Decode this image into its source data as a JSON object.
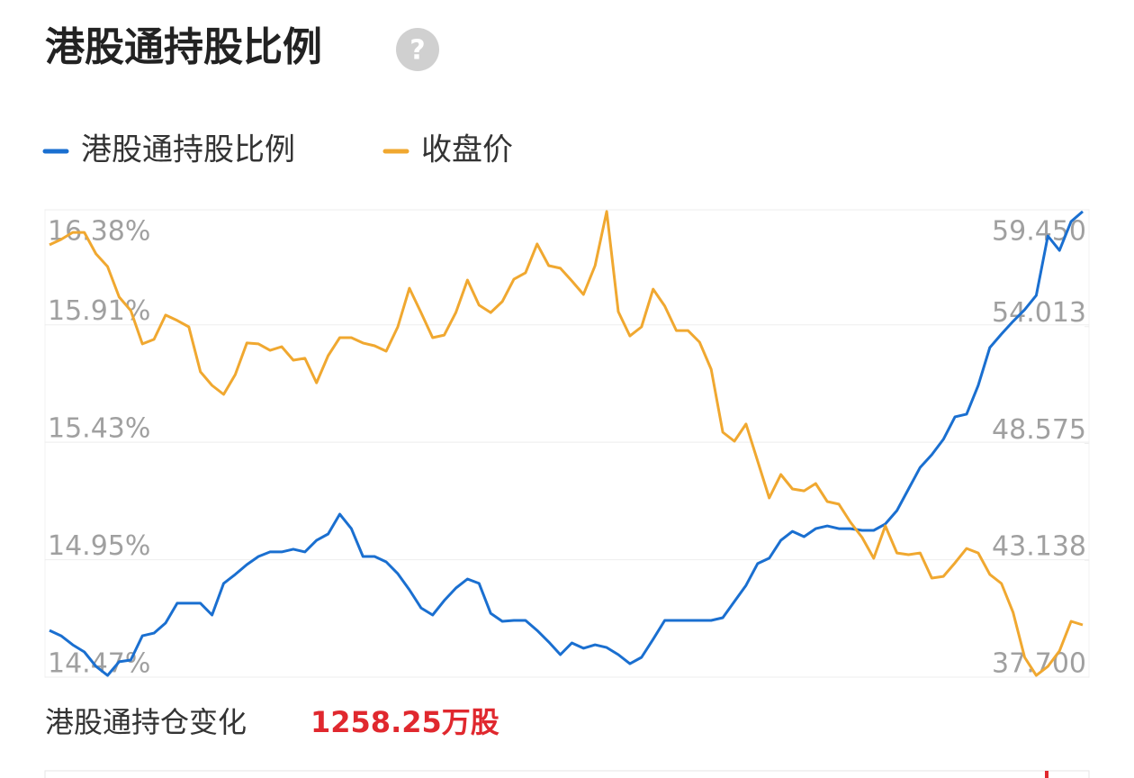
{
  "header": {
    "title": "港股通持股比例"
  },
  "chart_data": {
    "type": "line",
    "categories": [
      null,
      null,
      null,
      null,
      null,
      null,
      null,
      null,
      null,
      null,
      null,
      null,
      null,
      null,
      null,
      null,
      null,
      null,
      null,
      null,
      null,
      null,
      null,
      null,
      null,
      null,
      null,
      null,
      null,
      null,
      null,
      null,
      null,
      null,
      null,
      null,
      null,
      null,
      null,
      null,
      null,
      null,
      null,
      null,
      null,
      null,
      null,
      null,
      null,
      null,
      null,
      null,
      null,
      null,
      null,
      null,
      null,
      null,
      null,
      null,
      null,
      null,
      null,
      null,
      null,
      null,
      null,
      null,
      null,
      null,
      null,
      null,
      null,
      null,
      null,
      null,
      null,
      null,
      null,
      null,
      null,
      null,
      null,
      null,
      null,
      null,
      null,
      null,
      null,
      null
    ],
    "series": [
      {
        "name": "港股通持股比例",
        "color": "#1a6fd0",
        "values": [
          14.661,
          14.639,
          14.602,
          14.573,
          14.514,
          14.477,
          14.533,
          14.54,
          14.639,
          14.65,
          14.691,
          14.772,
          14.772,
          14.772,
          14.724,
          14.853,
          14.89,
          14.93,
          14.963,
          14.982,
          14.982,
          14.993,
          14.982,
          15.029,
          15.055,
          15.136,
          15.077,
          14.963,
          14.963,
          14.941,
          14.893,
          14.827,
          14.753,
          14.724,
          14.783,
          14.834,
          14.871,
          14.853,
          14.731,
          14.698,
          14.702,
          14.702,
          14.661,
          14.614,
          14.562,
          14.61,
          14.588,
          14.602,
          14.591,
          14.562,
          14.525,
          14.551,
          14.625,
          14.702,
          14.702,
          14.702,
          14.702,
          14.702,
          14.713,
          14.779,
          14.845,
          14.934,
          14.956,
          15.029,
          15.066,
          15.044,
          15.077,
          15.088,
          15.077,
          15.077,
          15.07,
          15.07,
          15.096,
          15.151,
          15.239,
          15.327,
          15.379,
          15.442,
          15.534,
          15.545,
          15.662,
          15.817,
          15.872,
          15.924,
          15.972,
          16.03,
          16.273,
          16.214,
          16.332,
          16.373
        ]
      },
      {
        "name": "收盘价",
        "color": "#f0a830",
        "axis": "y2",
        "values": [
          57.82,
          58.07,
          58.4,
          58.4,
          57.4,
          56.81,
          55.39,
          54.76,
          53.21,
          53.42,
          54.55,
          54.3,
          54.0,
          51.91,
          51.28,
          50.86,
          51.78,
          53.25,
          53.21,
          52.91,
          53.08,
          52.45,
          52.54,
          51.4,
          52.66,
          53.5,
          53.5,
          53.25,
          53.12,
          52.87,
          54.0,
          55.8,
          54.67,
          53.5,
          53.62,
          54.67,
          56.18,
          55.01,
          54.67,
          55.18,
          56.22,
          56.52,
          57.86,
          56.85,
          56.73,
          56.14,
          55.51,
          56.85,
          59.37,
          54.71,
          53.58,
          54.0,
          55.76,
          54.97,
          53.83,
          53.83,
          53.29,
          52.03,
          49.1,
          48.68,
          49.48,
          47.76,
          46.04,
          47.13,
          46.46,
          46.37,
          46.71,
          45.87,
          45.75,
          44.91,
          44.2,
          43.23,
          44.74,
          43.48,
          43.4,
          43.48,
          42.31,
          42.39,
          43.02,
          43.69,
          43.48,
          42.48,
          42.06,
          40.72,
          38.62,
          37.78,
          38.2,
          38.92,
          40.3,
          40.13
        ]
      }
    ],
    "ylim": [
      14.47,
      16.38
    ],
    "yticks": [
      {
        "value": 14.47,
        "label": "14.47%"
      },
      {
        "value": 14.95,
        "label": "14.95%"
      },
      {
        "value": 15.43,
        "label": "15.43%"
      },
      {
        "value": 15.91,
        "label": "15.91%"
      },
      {
        "value": 16.38,
        "label": "16.38%"
      }
    ],
    "y2lim": [
      37.7,
      59.45
    ],
    "y2ticks": [
      {
        "value": 37.7,
        "label": "37.700"
      },
      {
        "value": 43.138,
        "label": "43.138"
      },
      {
        "value": 48.575,
        "label": "48.575"
      },
      {
        "value": 54.013,
        "label": "54.013"
      },
      {
        "value": 59.45,
        "label": "59.450"
      }
    ],
    "grid": true
  },
  "footer": {
    "label": "港股通持仓变化",
    "value": "1258.25万股"
  }
}
